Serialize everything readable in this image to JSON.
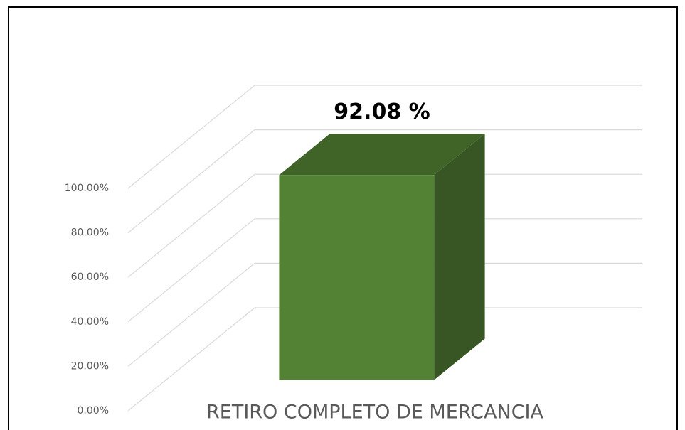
{
  "chart_data": {
    "type": "bar3d",
    "categories": [
      "RETIRO COMPLETO DE MERCANCIA"
    ],
    "values": [
      92.08
    ],
    "value_labels": [
      "92.08 %"
    ],
    "color": "#548235",
    "ylim": [
      0,
      100
    ],
    "yticks": [
      {
        "value": 0,
        "label": "0.00%"
      },
      {
        "value": 20,
        "label": "20.00%"
      },
      {
        "value": 40,
        "label": "40.00%"
      },
      {
        "value": 60,
        "label": "60.00%"
      },
      {
        "value": 80,
        "label": "80.00%"
      },
      {
        "value": 100,
        "label": "100.00%"
      }
    ],
    "grid": true
  }
}
